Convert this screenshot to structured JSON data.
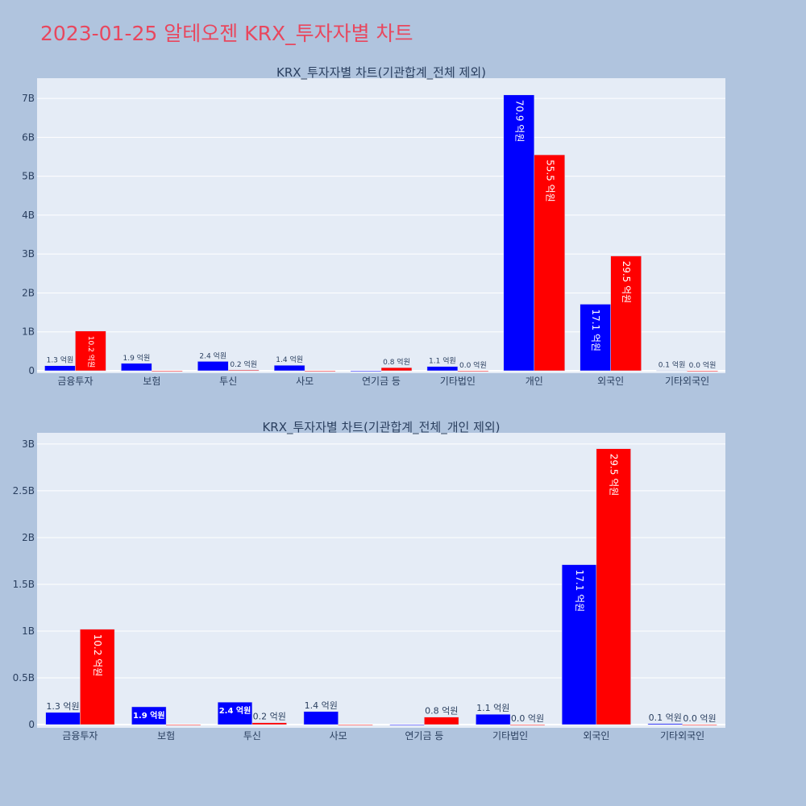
{
  "title": "2023-01-25 알테오젠 KRX_투자자별 차트",
  "colors": {
    "series_a": "#0000ff",
    "series_b": "#ff0000",
    "title": "#e8475e",
    "plot_bg": "#e5ecf6",
    "page_bg": "#b0c4de"
  },
  "chart_data": [
    {
      "type": "bar",
      "title": "KRX_투자자별 차트(기관합계_전체 제외)",
      "categories": [
        "금융투자",
        "보험",
        "투신",
        "사모",
        "연기금 등",
        "기타법인",
        "개인",
        "외국인",
        "기타외국인"
      ],
      "series": [
        {
          "name": "series_a",
          "values": [
            0.13,
            0.19,
            0.24,
            0.14,
            0,
            0.11,
            7.09,
            1.71,
            0.01
          ],
          "labels": [
            "1.3 억원",
            "1.9 억원",
            "2.4 억원",
            "1.4 억원",
            "",
            "1.1 억원",
            "70.9 억원",
            "17.1 억원",
            "0.1 억원"
          ]
        },
        {
          "name": "series_b",
          "values": [
            1.02,
            0,
            0.02,
            0,
            0.08,
            0.0,
            5.55,
            2.95,
            0.0
          ],
          "labels": [
            "10.2 억원",
            "",
            "0.2 억원",
            "",
            "0.8 억원",
            "0.0 억원",
            "55.5 억원",
            "29.5 억원",
            "0.0 억원"
          ]
        }
      ],
      "ylim": [
        0,
        7.52
      ],
      "yticks": [
        0,
        1,
        2,
        3,
        4,
        5,
        6,
        7
      ],
      "ytick_labels": [
        "0",
        "1B",
        "2B",
        "3B",
        "4B",
        "5B",
        "6B",
        "7B"
      ]
    },
    {
      "type": "bar",
      "title": "KRX_투자자별 차트(기관합계_전체_개인 제외)",
      "categories": [
        "금융투자",
        "보험",
        "투신",
        "사모",
        "연기금 등",
        "기타법인",
        "외국인",
        "기타외국인"
      ],
      "series": [
        {
          "name": "series_a",
          "values": [
            0.13,
            0.19,
            0.24,
            0.14,
            0,
            0.11,
            1.71,
            0.01
          ],
          "labels": [
            "1.3 억원",
            "1.9 억원",
            "2.4 억원",
            "1.4 억원",
            "",
            "1.1 억원",
            "17.1 억원",
            "0.1 억원"
          ]
        },
        {
          "name": "series_b",
          "values": [
            1.02,
            0,
            0.02,
            0,
            0.08,
            0.0,
            2.95,
            0.0
          ],
          "labels": [
            "10.2 억원",
            "",
            "0.2 억원",
            "",
            "0.8 억원",
            "0.0 억원",
            "29.5 억원",
            "0.0 억원"
          ]
        }
      ],
      "ylim": [
        0,
        3.12
      ],
      "yticks": [
        0,
        0.5,
        1,
        1.5,
        2,
        2.5,
        3
      ],
      "ytick_labels": [
        "0",
        "0.5B",
        "1B",
        "1.5B",
        "2B",
        "2.5B",
        "3B"
      ]
    }
  ]
}
